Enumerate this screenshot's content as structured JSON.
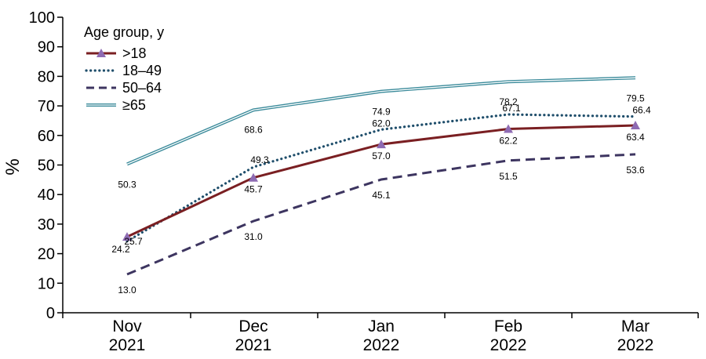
{
  "chart_data": {
    "type": "line",
    "categories": [
      [
        "Nov",
        "2021"
      ],
      [
        "Dec",
        "2021"
      ],
      [
        "Jan",
        "2022"
      ],
      [
        "Feb",
        "2022"
      ],
      [
        "Mar",
        "2022"
      ]
    ],
    "ylabel": "%",
    "ylim": [
      0,
      100
    ],
    "yticks": [
      0,
      10,
      20,
      30,
      40,
      50,
      60,
      70,
      80,
      90,
      100
    ],
    "grid": false,
    "legend": {
      "title": "Age group, y",
      "placement": "top-left"
    },
    "series": [
      {
        "name": ">18",
        "values": [
          25.7,
          45.7,
          57.0,
          62.2,
          63.4
        ],
        "labels": [
          "25.7",
          "45.7",
          "57.0",
          "62.2",
          "63.4"
        ],
        "color": "#7a1f22",
        "marker_color": "#8e6bb3",
        "style": "solid-triangle"
      },
      {
        "name": "18–49",
        "values": [
          24.2,
          49.3,
          62.0,
          67.1,
          66.4
        ],
        "labels": [
          "24.2",
          "49.3",
          "62.0",
          "67.1",
          "66.4"
        ],
        "color": "#1f4e6b",
        "style": "dotted"
      },
      {
        "name": "50–64",
        "values": [
          13.0,
          31.0,
          45.1,
          51.5,
          53.6
        ],
        "labels": [
          "13.0",
          "31.0",
          "45.1",
          "51.5",
          "53.6"
        ],
        "color": "#3d3560",
        "style": "dashed"
      },
      {
        "name": "≥65",
        "values": [
          50.3,
          68.6,
          74.9,
          78.2,
          79.5
        ],
        "labels": [
          "50.3",
          "68.6",
          "74.9",
          "78.2",
          "79.5"
        ],
        "color": "#3a8a9a",
        "style": "double"
      }
    ]
  }
}
